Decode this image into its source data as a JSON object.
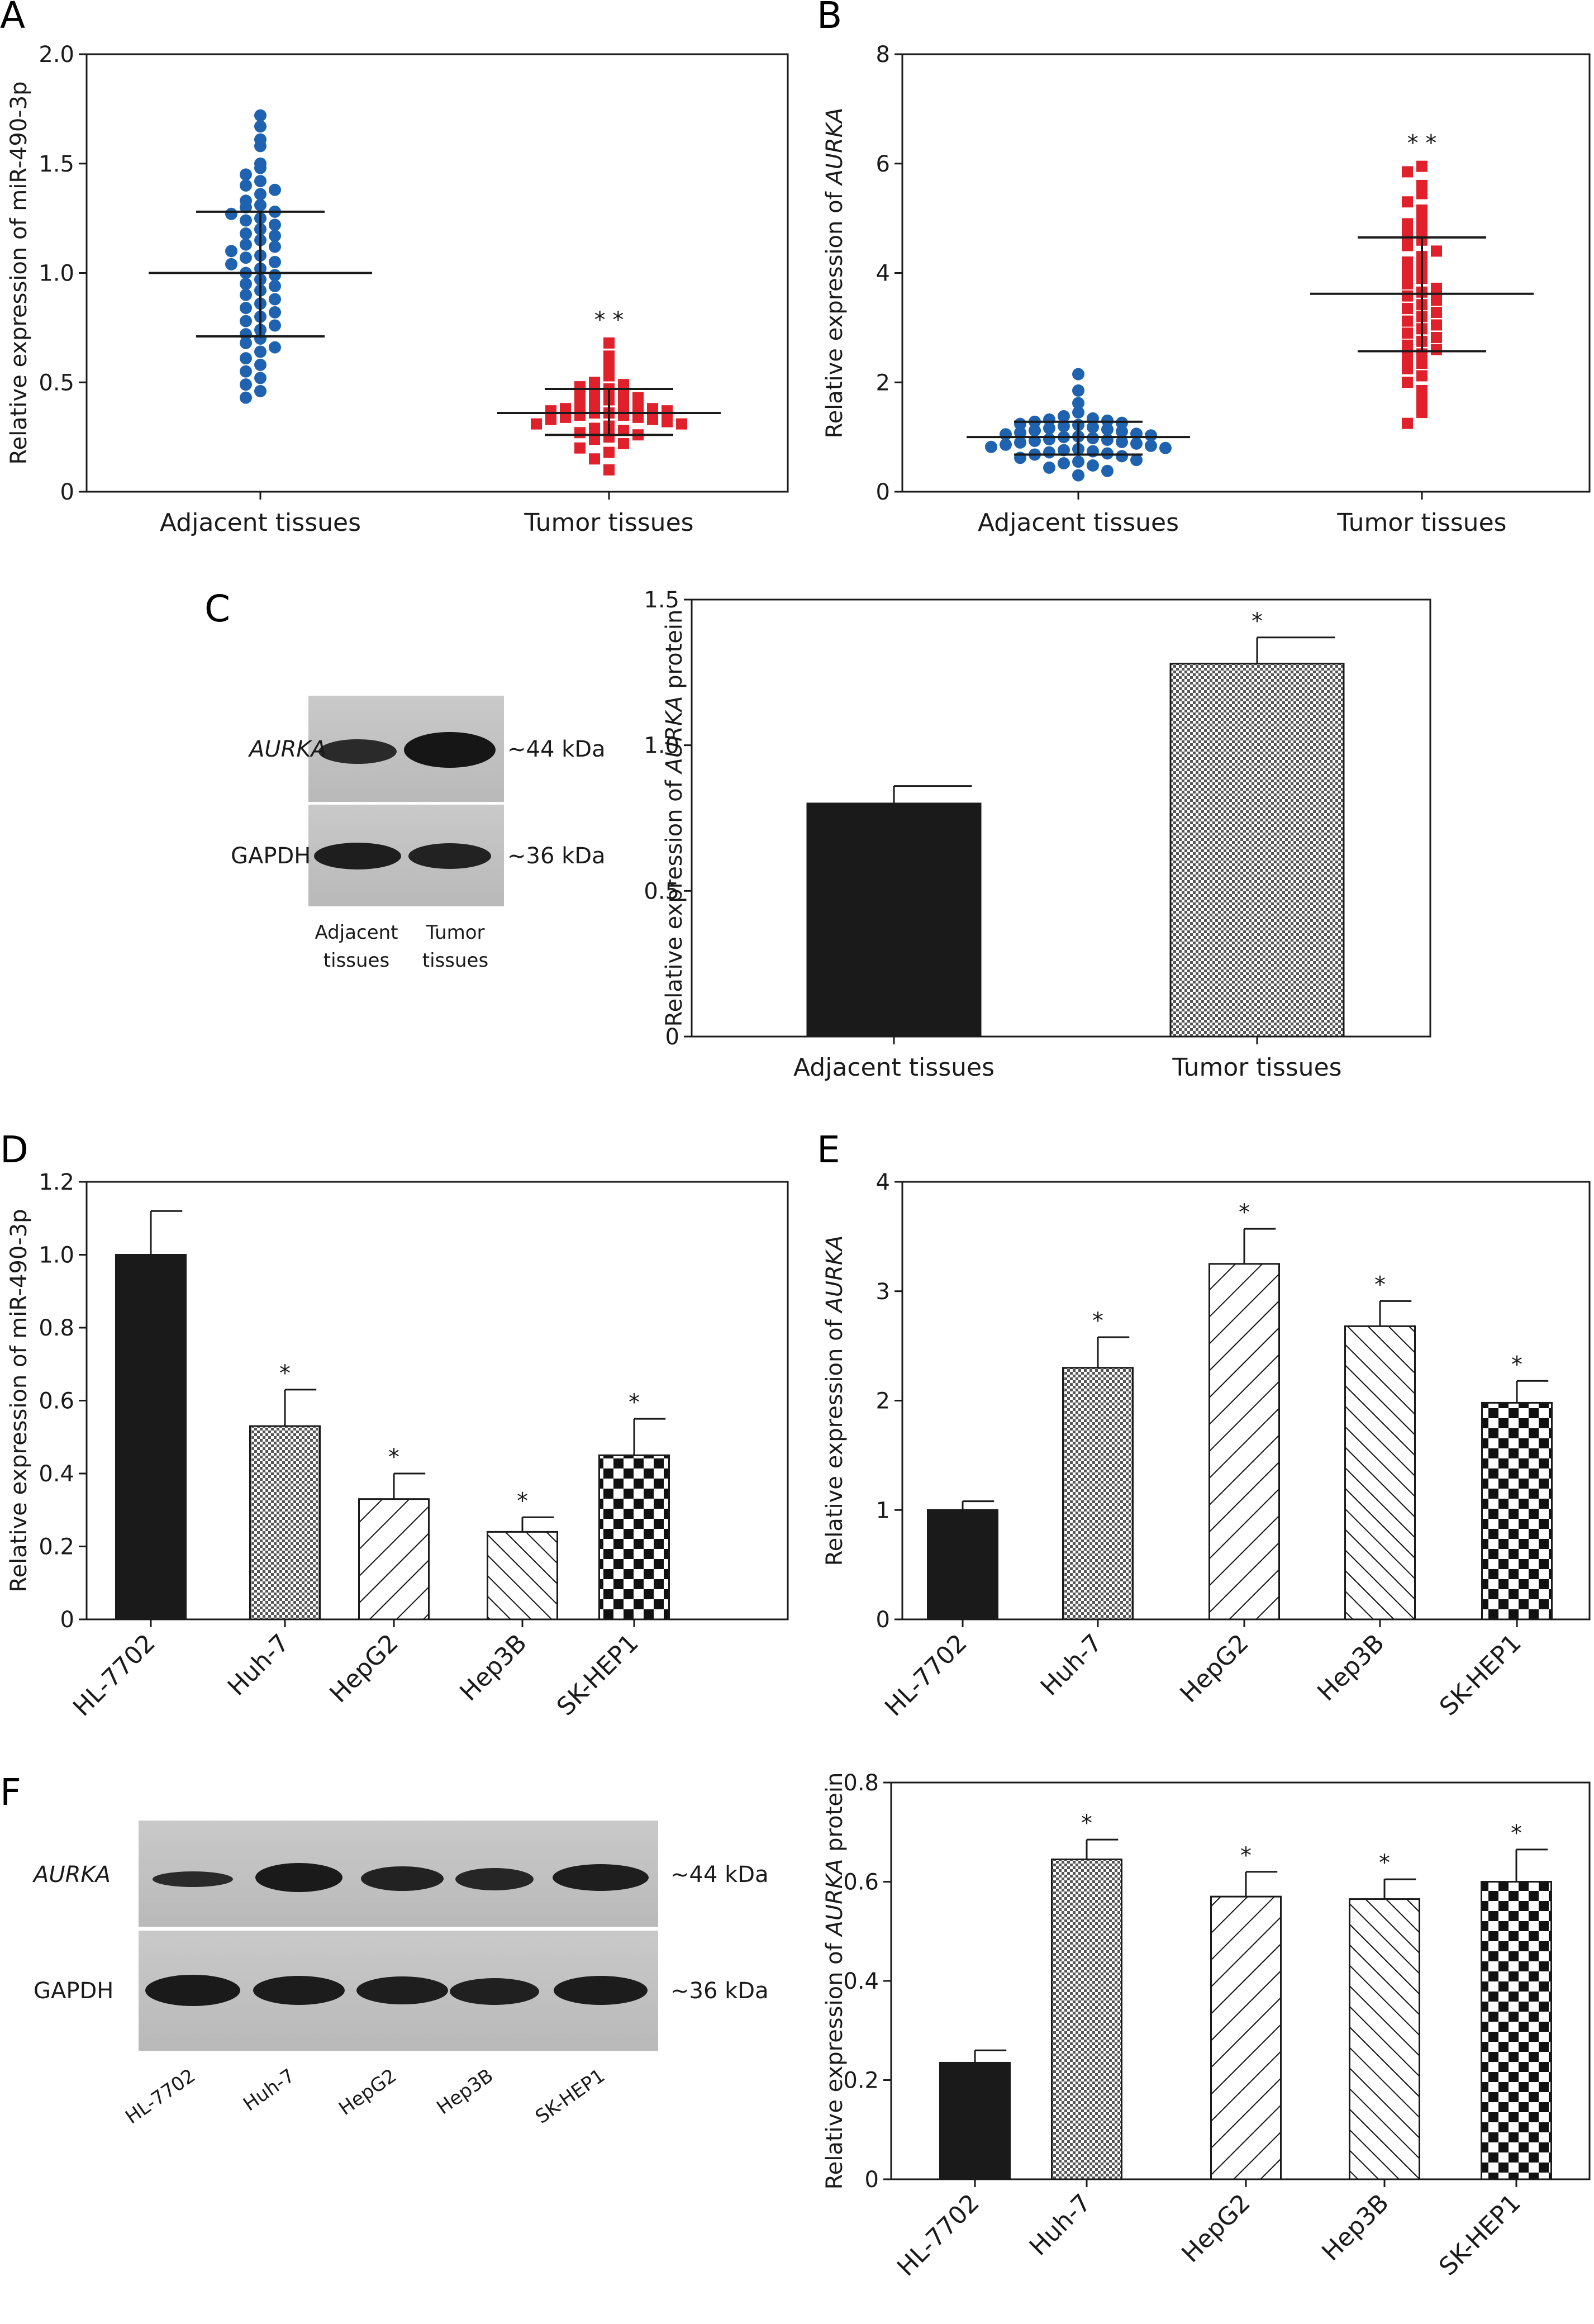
{
  "panels": {
    "A": {
      "letter": "A"
    },
    "B": {
      "letter": "B"
    },
    "C": {
      "letter": "C"
    },
    "D": {
      "letter": "D"
    },
    "E": {
      "letter": "E"
    },
    "F": {
      "letter": "F"
    }
  },
  "blot_C": {
    "rows": [
      "AURKA",
      "GAPDH"
    ],
    "sizes": [
      "~44 kDa",
      "~36 kDa"
    ],
    "lanes": [
      [
        "Adjacent",
        "tissues"
      ],
      [
        "Tumor",
        "tissues"
      ]
    ]
  },
  "blot_F": {
    "rows": [
      "AURKA",
      "GAPDH"
    ],
    "sizes": [
      "~44 kDa",
      "~36 kDa"
    ],
    "lanes": [
      "HL-7702",
      "Huh-7",
      "HepG2",
      "Hep3B",
      "SK-HEP1"
    ]
  },
  "colors": {
    "adjacent_points": "#1f63b0",
    "tumor_points": "#e0202a",
    "bar_dark": "#1a1a1a"
  },
  "chart_data": [
    {
      "id": "A",
      "type": "scatter",
      "ylabel": "Relative expression of miR-490-3p",
      "ylim": [
        0,
        2.0
      ],
      "yticks": [
        "0",
        "0.5",
        "1.0",
        "1.5",
        "2.0"
      ],
      "categories": [
        "Adjacent tissues",
        "Tumor tissues"
      ],
      "series": [
        {
          "category": "Adjacent tissues",
          "mean": 1.0,
          "sd_low": 0.71,
          "sd_high": 1.28,
          "marker": "circle",
          "color": "#1f63b0",
          "values": [
            1.72,
            1.67,
            1.61,
            1.58,
            1.5,
            1.48,
            1.45,
            1.42,
            1.4,
            1.38,
            1.36,
            1.33,
            1.31,
            1.3,
            1.28,
            1.27,
            1.25,
            1.24,
            1.22,
            1.2,
            1.18,
            1.17,
            1.15,
            1.13,
            1.12,
            1.1,
            1.08,
            1.07,
            1.05,
            1.04,
            1.02,
            1.0,
            0.99,
            0.97,
            0.95,
            0.94,
            0.92,
            0.9,
            0.88,
            0.86,
            0.84,
            0.82,
            0.8,
            0.78,
            0.76,
            0.74,
            0.72,
            0.7,
            0.68,
            0.66,
            0.64,
            0.61,
            0.58,
            0.55,
            0.52,
            0.49,
            0.46,
            0.43
          ]
        },
        {
          "category": "Tumor tissues",
          "mean": 0.36,
          "sd_low": 0.26,
          "sd_high": 0.47,
          "marker": "square",
          "color": "#e0202a",
          "sig": "* *",
          "values": [
            0.68,
            0.62,
            0.57,
            0.53,
            0.5,
            0.49,
            0.48,
            0.47,
            0.46,
            0.45,
            0.44,
            0.43,
            0.42,
            0.41,
            0.4,
            0.4,
            0.39,
            0.38,
            0.38,
            0.37,
            0.37,
            0.36,
            0.36,
            0.35,
            0.35,
            0.34,
            0.34,
            0.33,
            0.33,
            0.32,
            0.31,
            0.31,
            0.3,
            0.29,
            0.28,
            0.27,
            0.26,
            0.25,
            0.24,
            0.22,
            0.2,
            0.18,
            0.15,
            0.1
          ]
        }
      ]
    },
    {
      "id": "B",
      "type": "scatter",
      "ylabel_parts": [
        "Relative expression of ",
        "AURKA"
      ],
      "ylim": [
        0,
        8
      ],
      "yticks": [
        "0",
        "2",
        "4",
        "6",
        "8"
      ],
      "categories": [
        "Adjacent tissues",
        "Tumor tissues"
      ],
      "series": [
        {
          "category": "Adjacent tissues",
          "mean": 1.0,
          "sd_low": 0.68,
          "sd_high": 1.28,
          "marker": "circle",
          "color": "#1f63b0",
          "values": [
            2.15,
            1.85,
            1.62,
            1.45,
            1.38,
            1.34,
            1.32,
            1.3,
            1.28,
            1.26,
            1.24,
            1.22,
            1.2,
            1.18,
            1.16,
            1.14,
            1.12,
            1.1,
            1.08,
            1.06,
            1.05,
            1.03,
            1.01,
            1.0,
            0.98,
            0.96,
            0.95,
            0.93,
            0.91,
            0.9,
            0.88,
            0.86,
            0.84,
            0.82,
            0.8,
            0.78,
            0.76,
            0.74,
            0.72,
            0.7,
            0.68,
            0.65,
            0.62,
            0.58,
            0.55,
            0.52,
            0.48,
            0.44,
            0.38,
            0.3
          ]
        },
        {
          "category": "Tumor tissues",
          "mean": 3.62,
          "sd_low": 2.57,
          "sd_high": 4.65,
          "marker": "square",
          "color": "#e0202a",
          "sig": "* *",
          "values": [
            5.95,
            5.85,
            5.6,
            5.45,
            5.3,
            5.15,
            5.0,
            4.9,
            4.8,
            4.7,
            4.6,
            4.5,
            4.4,
            4.3,
            4.2,
            4.1,
            4.0,
            3.9,
            3.8,
            3.72,
            3.65,
            3.58,
            3.5,
            3.42,
            3.35,
            3.28,
            3.2,
            3.12,
            3.05,
            2.98,
            2.9,
            2.82,
            2.75,
            2.68,
            2.6,
            2.52,
            2.45,
            2.35,
            2.25,
            2.12,
            2.0,
            1.85,
            1.65,
            1.45,
            1.25
          ]
        }
      ]
    },
    {
      "id": "C",
      "type": "bar",
      "ylabel_parts": [
        "Relative expression of ",
        "AURKA",
        " protein"
      ],
      "ylim": [
        0,
        1.5
      ],
      "yticks": [
        "0",
        "0.5",
        "1.0",
        "1.5"
      ],
      "categories": [
        "Adjacent tissues",
        "Tumor tissues"
      ],
      "values": [
        0.8,
        1.28
      ],
      "errors": [
        0.06,
        0.09
      ],
      "patterns": [
        "solid",
        "fine-check"
      ],
      "sig": [
        "",
        "*"
      ]
    },
    {
      "id": "D",
      "type": "bar",
      "ylabel": "Relative expression of miR-490-3p",
      "ylim": [
        0,
        1.2
      ],
      "yticks": [
        "0",
        "0.2",
        "0.4",
        "0.6",
        "0.8",
        "1.0",
        "1.2"
      ],
      "categories": [
        "HL-7702",
        "Huh-7",
        "HepG2",
        "Hep3B",
        "SK-HEP1"
      ],
      "values": [
        1.0,
        0.53,
        0.33,
        0.24,
        0.45
      ],
      "errors": [
        0.12,
        0.1,
        0.07,
        0.04,
        0.1
      ],
      "patterns": [
        "solid",
        "fine-check",
        "diag-right",
        "diag-left",
        "coarse-check"
      ],
      "sig": [
        "",
        "*",
        "*",
        "*",
        "*"
      ]
    },
    {
      "id": "E",
      "type": "bar",
      "ylabel_parts": [
        "Relative expression of ",
        "AURKA"
      ],
      "ylim": [
        0,
        4
      ],
      "yticks": [
        "0",
        "1",
        "2",
        "3",
        "4"
      ],
      "categories": [
        "HL-7702",
        "Huh-7",
        "HepG2",
        "Hep3B",
        "SK-HEP1"
      ],
      "values": [
        1.0,
        2.3,
        3.25,
        2.68,
        1.98
      ],
      "errors": [
        0.08,
        0.28,
        0.32,
        0.23,
        0.2
      ],
      "patterns": [
        "solid",
        "fine-check",
        "diag-right",
        "diag-left",
        "coarse-check"
      ],
      "sig": [
        "",
        "*",
        "*",
        "*",
        "*"
      ]
    },
    {
      "id": "F",
      "type": "bar",
      "ylabel_parts": [
        "Relative expression of ",
        "AURKA",
        " protein"
      ],
      "ylim": [
        0,
        0.8
      ],
      "yticks": [
        "0",
        "0.2",
        "0.4",
        "0.6",
        "0.8"
      ],
      "categories": [
        "HL-7702",
        "Huh-7",
        "HepG2",
        "Hep3B",
        "SK-HEP1"
      ],
      "values": [
        0.235,
        0.645,
        0.57,
        0.565,
        0.6
      ],
      "errors": [
        0.025,
        0.04,
        0.05,
        0.04,
        0.065
      ],
      "patterns": [
        "solid",
        "fine-check",
        "diag-right",
        "diag-left",
        "coarse-check"
      ],
      "sig": [
        "",
        "*",
        "*",
        "*",
        "*"
      ]
    }
  ]
}
